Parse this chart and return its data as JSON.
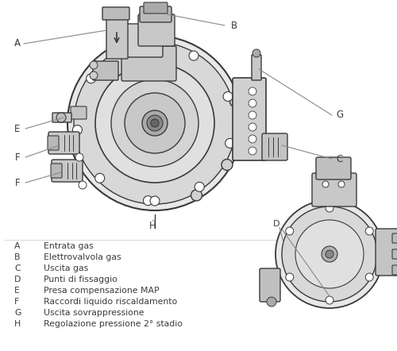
{
  "background_color": "#ffffff",
  "legend_items": [
    [
      "A",
      "Entrata gas"
    ],
    [
      "B",
      "Elettrovalvola gas"
    ],
    [
      "C",
      "Uscita gas"
    ],
    [
      "D",
      "Punti di fissaggio"
    ],
    [
      "E",
      "Presa compensazione MAP"
    ],
    [
      "F",
      "Raccordi liquido riscaldamento"
    ],
    [
      "G",
      "Uscita sovrappressione"
    ],
    [
      "H",
      "Regolazione pressione 2° stadio"
    ]
  ],
  "label_fontsize": 7.5,
  "desc_fontsize": 7.5,
  "darkgray": "#3a3a3a",
  "medgray": "#888888",
  "lightgray": "#cccccc",
  "verylightgray": "#eeeeee",
  "midgray": "#bbbbbb",
  "white": "#ffffff"
}
